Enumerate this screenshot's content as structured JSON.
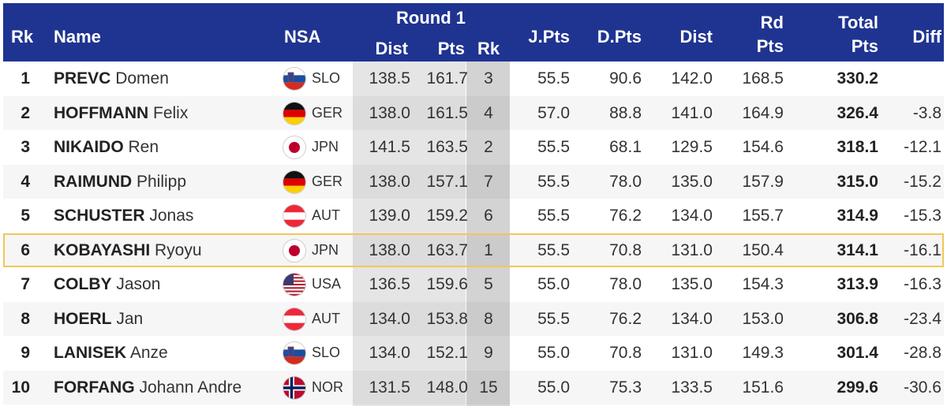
{
  "headers": {
    "rk": "Rk",
    "name": "Name",
    "nsa": "NSA",
    "round1": "Round 1",
    "dist": "Dist",
    "pts": "Pts",
    "r1rk": "Rk",
    "jpts": "J.Pts",
    "dpts": "D.Pts",
    "dist2": "Dist",
    "rd_pts_1": "Rd",
    "rd_pts_2": "Pts",
    "total_1": "Total",
    "total_2": "Pts",
    "diff": "Diff"
  },
  "colors": {
    "header_bg": "#1f3491",
    "highlight": "#f1c75a"
  },
  "rows": [
    {
      "rk": "1",
      "last": "PREVC",
      "first": "Domen",
      "nsa": "SLO",
      "flag": "slo-flag-icon",
      "r1_dist": "138.5",
      "r1_pts": "161.7",
      "r1_rk": "3",
      "jpts": "55.5",
      "dpts": "90.6",
      "dist": "142.0",
      "rd_pts": "168.5",
      "total": "330.2",
      "diff": "",
      "highlight": false
    },
    {
      "rk": "2",
      "last": "HOFFMANN",
      "first": "Felix",
      "nsa": "GER",
      "flag": "ger-flag-icon",
      "r1_dist": "138.0",
      "r1_pts": "161.5",
      "r1_rk": "4",
      "jpts": "57.0",
      "dpts": "88.8",
      "dist": "141.0",
      "rd_pts": "164.9",
      "total": "326.4",
      "diff": "-3.8",
      "highlight": false
    },
    {
      "rk": "3",
      "last": "NIKAIDO",
      "first": "Ren",
      "nsa": "JPN",
      "flag": "jpn-flag-icon",
      "r1_dist": "141.5",
      "r1_pts": "163.5",
      "r1_rk": "2",
      "jpts": "55.5",
      "dpts": "68.1",
      "dist": "129.5",
      "rd_pts": "154.6",
      "total": "318.1",
      "diff": "-12.1",
      "highlight": false
    },
    {
      "rk": "4",
      "last": "RAIMUND",
      "first": "Philipp",
      "nsa": "GER",
      "flag": "ger-flag-icon",
      "r1_dist": "138.0",
      "r1_pts": "157.1",
      "r1_rk": "7",
      "jpts": "55.5",
      "dpts": "78.0",
      "dist": "135.0",
      "rd_pts": "157.9",
      "total": "315.0",
      "diff": "-15.2",
      "highlight": false
    },
    {
      "rk": "5",
      "last": "SCHUSTER",
      "first": "Jonas",
      "nsa": "AUT",
      "flag": "aut-flag-icon",
      "r1_dist": "139.0",
      "r1_pts": "159.2",
      "r1_rk": "6",
      "jpts": "55.5",
      "dpts": "76.2",
      "dist": "134.0",
      "rd_pts": "155.7",
      "total": "314.9",
      "diff": "-15.3",
      "highlight": false
    },
    {
      "rk": "6",
      "last": "KOBAYASHI",
      "first": "Ryoyu",
      "nsa": "JPN",
      "flag": "jpn-flag-icon",
      "r1_dist": "138.0",
      "r1_pts": "163.7",
      "r1_rk": "1",
      "jpts": "55.5",
      "dpts": "70.8",
      "dist": "131.0",
      "rd_pts": "150.4",
      "total": "314.1",
      "diff": "-16.1",
      "highlight": true
    },
    {
      "rk": "7",
      "last": "COLBY",
      "first": "Jason",
      "nsa": "USA",
      "flag": "usa-flag-icon",
      "r1_dist": "136.5",
      "r1_pts": "159.6",
      "r1_rk": "5",
      "jpts": "55.0",
      "dpts": "78.0",
      "dist": "135.0",
      "rd_pts": "154.3",
      "total": "313.9",
      "diff": "-16.3",
      "highlight": false
    },
    {
      "rk": "8",
      "last": "HOERL",
      "first": "Jan",
      "nsa": "AUT",
      "flag": "aut-flag-icon",
      "r1_dist": "134.0",
      "r1_pts": "153.8",
      "r1_rk": "8",
      "jpts": "55.5",
      "dpts": "76.2",
      "dist": "134.0",
      "rd_pts": "153.0",
      "total": "306.8",
      "diff": "-23.4",
      "highlight": false
    },
    {
      "rk": "9",
      "last": "LANISEK",
      "first": "Anze",
      "nsa": "SLO",
      "flag": "slo-flag-icon",
      "r1_dist": "134.0",
      "r1_pts": "152.1",
      "r1_rk": "9",
      "jpts": "55.0",
      "dpts": "70.8",
      "dist": "131.0",
      "rd_pts": "149.3",
      "total": "301.4",
      "diff": "-28.8",
      "highlight": false
    },
    {
      "rk": "10",
      "last": "FORFANG",
      "first": "Johann Andre",
      "nsa": "NOR",
      "flag": "nor-flag-icon",
      "r1_dist": "131.5",
      "r1_pts": "148.0",
      "r1_rk": "15",
      "jpts": "55.0",
      "dpts": "75.3",
      "dist": "133.5",
      "rd_pts": "151.6",
      "total": "299.6",
      "diff": "-30.6",
      "highlight": false
    }
  ]
}
